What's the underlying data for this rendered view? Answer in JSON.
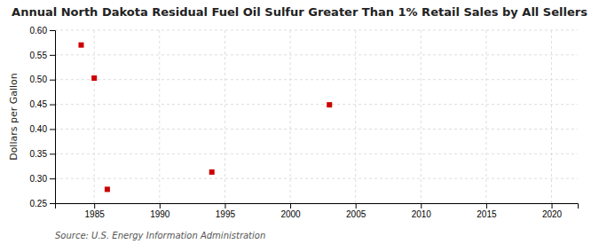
{
  "chart_data": {
    "type": "scatter",
    "title": "Annual North Dakota Residual Fuel Oil Sulfur Greater Than 1% Retail Sales by All Sellers",
    "y_label": "Dollars per Gallon",
    "source": "Source: U.S. Energy Information Administration",
    "x": [
      1984,
      1985,
      1986,
      1994,
      2003
    ],
    "values": [
      0.57,
      0.503,
      0.278,
      0.313,
      0.449
    ],
    "color": "#cc0000",
    "marker": "square",
    "xlim": [
      1982,
      2022
    ],
    "ylim": [
      0.25,
      0.6
    ],
    "xticks": [
      1985,
      1990,
      1995,
      2000,
      2005,
      2010,
      2015,
      2020
    ],
    "yticks": [
      0.25,
      {
        "value": 0.3,
        "label": "0.30"
      },
      0.35,
      {
        "value": 0.4,
        "label": "0.40"
      },
      0.45,
      {
        "value": 0.5,
        "label": "0.50"
      },
      0.55,
      {
        "value": 0.6,
        "label": "0.60"
      }
    ],
    "grid": true
  }
}
